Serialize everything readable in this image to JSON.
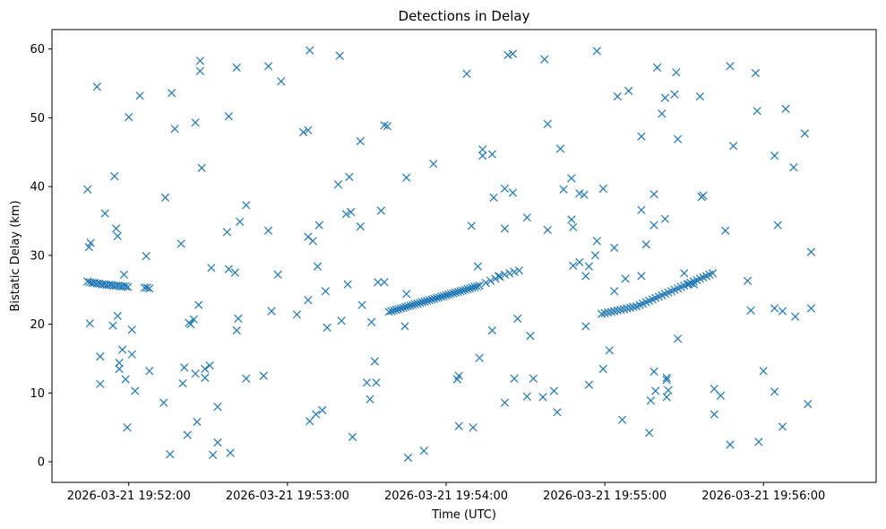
{
  "chart_data": {
    "type": "scatter",
    "title": "Detections in Delay",
    "xlabel": "Time (UTC)",
    "ylabel": "Bistatic Delay (km)",
    "marker": "x",
    "color": "#1f77b4",
    "grid": false,
    "legend": "none",
    "x_unit": "minutes",
    "xlim": [
      -0.484,
      4.71
    ],
    "ylim": [
      -2.99,
      62.82
    ],
    "x_ticks": [
      {
        "value": 0,
        "label": "2026-03-21 19:52:00"
      },
      {
        "value": 1,
        "label": "2026-03-21 19:53:00"
      },
      {
        "value": 2,
        "label": "2026-03-21 19:54:00"
      },
      {
        "value": 3,
        "label": "2026-03-21 19:55:00"
      },
      {
        "value": 4,
        "label": "2026-03-21 19:56:00"
      }
    ],
    "y_ticks": [
      0,
      10,
      20,
      30,
      40,
      50,
      60
    ],
    "points": [
      [
        -0.26,
        26.2
      ],
      [
        -0.245,
        26.1
      ],
      [
        -0.23,
        26.0
      ],
      [
        -0.215,
        26.0
      ],
      [
        -0.2,
        25.9
      ],
      [
        -0.185,
        25.9
      ],
      [
        -0.17,
        25.8
      ],
      [
        -0.155,
        25.8
      ],
      [
        -0.14,
        25.7
      ],
      [
        -0.125,
        25.7
      ],
      [
        -0.11,
        25.7
      ],
      [
        -0.095,
        25.6
      ],
      [
        -0.08,
        25.6
      ],
      [
        -0.065,
        25.6
      ],
      [
        -0.05,
        25.5
      ],
      [
        -0.035,
        25.5
      ],
      [
        -0.02,
        25.5
      ],
      [
        -0.005,
        25.4
      ],
      [
        0.1,
        25.3
      ],
      [
        0.115,
        25.3
      ],
      [
        0.13,
        25.2
      ],
      [
        1.64,
        21.8
      ],
      [
        1.655,
        21.9
      ],
      [
        1.67,
        22.0
      ],
      [
        1.685,
        22.1
      ],
      [
        1.7,
        22.2
      ],
      [
        1.715,
        22.3
      ],
      [
        1.73,
        22.4
      ],
      [
        1.745,
        22.5
      ],
      [
        1.76,
        22.6
      ],
      [
        1.775,
        22.7
      ],
      [
        1.79,
        22.8
      ],
      [
        1.805,
        22.9
      ],
      [
        1.82,
        23.0
      ],
      [
        1.835,
        23.1
      ],
      [
        1.85,
        23.2
      ],
      [
        1.865,
        23.3
      ],
      [
        1.88,
        23.4
      ],
      [
        1.895,
        23.5
      ],
      [
        1.91,
        23.6
      ],
      [
        1.925,
        23.7
      ],
      [
        1.94,
        23.8
      ],
      [
        1.955,
        23.9
      ],
      [
        1.97,
        24.0
      ],
      [
        1.985,
        24.1
      ],
      [
        2.0,
        24.2
      ],
      [
        2.015,
        24.3
      ],
      [
        2.03,
        24.4
      ],
      [
        2.045,
        24.5
      ],
      [
        2.06,
        24.6
      ],
      [
        2.075,
        24.7
      ],
      [
        2.09,
        24.8
      ],
      [
        2.105,
        24.9
      ],
      [
        2.12,
        25.0
      ],
      [
        2.135,
        25.1
      ],
      [
        2.15,
        25.2
      ],
      [
        2.165,
        25.3
      ],
      [
        2.18,
        25.4
      ],
      [
        2.195,
        25.5
      ],
      [
        2.21,
        25.6
      ],
      [
        2.25,
        26.0
      ],
      [
        2.28,
        26.3
      ],
      [
        2.31,
        26.6
      ],
      [
        2.34,
        26.9
      ],
      [
        2.37,
        27.2
      ],
      [
        2.4,
        27.4
      ],
      [
        2.43,
        27.6
      ],
      [
        2.46,
        27.8
      ],
      [
        2.98,
        21.5
      ],
      [
        3.0,
        21.6
      ],
      [
        3.02,
        21.7
      ],
      [
        3.04,
        21.8
      ],
      [
        3.06,
        21.9
      ],
      [
        3.08,
        22.0
      ],
      [
        3.1,
        22.1
      ],
      [
        3.12,
        22.2
      ],
      [
        3.14,
        22.3
      ],
      [
        3.16,
        22.4
      ],
      [
        3.18,
        22.5
      ],
      [
        3.2,
        22.6
      ],
      [
        3.22,
        22.8
      ],
      [
        3.24,
        23.0
      ],
      [
        3.26,
        23.2
      ],
      [
        3.28,
        23.4
      ],
      [
        3.3,
        23.6
      ],
      [
        3.32,
        23.8
      ],
      [
        3.34,
        24.0
      ],
      [
        3.36,
        24.2
      ],
      [
        3.38,
        24.4
      ],
      [
        3.4,
        24.6
      ],
      [
        3.42,
        24.8
      ],
      [
        3.44,
        25.0
      ],
      [
        3.46,
        25.2
      ],
      [
        3.48,
        25.4
      ],
      [
        3.5,
        25.6
      ],
      [
        3.52,
        25.8
      ],
      [
        3.54,
        26.0
      ],
      [
        3.56,
        26.2
      ],
      [
        3.58,
        26.4
      ],
      [
        3.6,
        26.6
      ],
      [
        3.62,
        26.8
      ],
      [
        3.64,
        27.0
      ],
      [
        3.66,
        27.2
      ],
      [
        3.68,
        27.4
      ],
      [
        -0.26,
        39.6
      ],
      [
        -0.25,
        31.2
      ],
      [
        -0.24,
        31.8
      ],
      [
        -0.245,
        20.1
      ],
      [
        -0.2,
        54.5
      ],
      [
        -0.18,
        15.3
      ],
      [
        -0.18,
        11.3
      ],
      [
        -0.15,
        36.1
      ],
      [
        -0.1,
        19.8
      ],
      [
        -0.09,
        41.5
      ],
      [
        -0.08,
        33.9
      ],
      [
        -0.07,
        32.8
      ],
      [
        -0.07,
        21.2
      ],
      [
        -0.06,
        14.4
      ],
      [
        -0.06,
        13.5
      ],
      [
        -0.04,
        16.3
      ],
      [
        -0.03,
        27.2
      ],
      [
        -0.02,
        12.0
      ],
      [
        -0.01,
        5.0
      ],
      [
        0.0,
        50.1
      ],
      [
        0.02,
        15.6
      ],
      [
        0.02,
        19.2
      ],
      [
        0.04,
        10.3
      ],
      [
        0.07,
        53.2
      ],
      [
        0.11,
        29.9
      ],
      [
        0.13,
        13.2
      ],
      [
        0.22,
        8.6
      ],
      [
        0.23,
        38.4
      ],
      [
        0.26,
        1.1
      ],
      [
        0.27,
        53.6
      ],
      [
        0.29,
        48.4
      ],
      [
        0.33,
        31.7
      ],
      [
        0.34,
        11.4
      ],
      [
        0.35,
        13.7
      ],
      [
        0.37,
        3.9
      ],
      [
        0.38,
        20.2
      ],
      [
        0.39,
        20.0
      ],
      [
        0.41,
        20.7
      ],
      [
        0.42,
        49.3
      ],
      [
        0.42,
        12.8
      ],
      [
        0.43,
        5.8
      ],
      [
        0.44,
        22.8
      ],
      [
        0.45,
        58.3
      ],
      [
        0.45,
        56.8
      ],
      [
        0.46,
        42.7
      ],
      [
        0.48,
        13.5
      ],
      [
        0.48,
        12.2
      ],
      [
        0.51,
        14.0
      ],
      [
        0.52,
        28.2
      ],
      [
        0.53,
        1.0
      ],
      [
        0.56,
        8.0
      ],
      [
        0.56,
        2.8
      ],
      [
        0.62,
        33.4
      ],
      [
        0.63,
        28.0
      ],
      [
        0.63,
        50.2
      ],
      [
        0.64,
        1.3
      ],
      [
        0.67,
        27.5
      ],
      [
        0.68,
        57.3
      ],
      [
        0.68,
        19.1
      ],
      [
        0.69,
        20.8
      ],
      [
        0.7,
        34.9
      ],
      [
        0.74,
        37.3
      ],
      [
        0.74,
        12.1
      ],
      [
        0.85,
        12.5
      ],
      [
        0.88,
        57.5
      ],
      [
        0.88,
        33.6
      ],
      [
        0.9,
        21.9
      ],
      [
        0.94,
        27.2
      ],
      [
        0.96,
        55.3
      ],
      [
        1.06,
        21.4
      ],
      [
        1.1,
        47.9
      ],
      [
        1.13,
        48.2
      ],
      [
        1.13,
        23.5
      ],
      [
        1.13,
        32.7
      ],
      [
        1.14,
        59.8
      ],
      [
        1.14,
        5.9
      ],
      [
        1.16,
        32.1
      ],
      [
        1.18,
        6.9
      ],
      [
        1.19,
        28.4
      ],
      [
        1.2,
        34.4
      ],
      [
        1.22,
        7.5
      ],
      [
        1.24,
        24.8
      ],
      [
        1.25,
        19.5
      ],
      [
        1.32,
        40.3
      ],
      [
        1.33,
        59.0
      ],
      [
        1.34,
        20.5
      ],
      [
        1.37,
        36.0
      ],
      [
        1.38,
        25.8
      ],
      [
        1.39,
        41.4
      ],
      [
        1.4,
        36.3
      ],
      [
        1.41,
        3.6
      ],
      [
        1.46,
        46.6
      ],
      [
        1.46,
        34.2
      ],
      [
        1.47,
        22.8
      ],
      [
        1.5,
        11.5
      ],
      [
        1.52,
        9.1
      ],
      [
        1.53,
        20.3
      ],
      [
        1.55,
        14.6
      ],
      [
        1.56,
        11.5
      ],
      [
        1.57,
        26.1
      ],
      [
        1.59,
        36.5
      ],
      [
        1.61,
        26.1
      ],
      [
        1.61,
        48.9
      ],
      [
        1.63,
        48.8
      ],
      [
        1.74,
        19.7
      ],
      [
        1.75,
        41.3
      ],
      [
        1.75,
        24.4
      ],
      [
        1.76,
        0.6
      ],
      [
        1.86,
        1.6
      ],
      [
        1.92,
        43.3
      ],
      [
        2.07,
        12.0
      ],
      [
        2.08,
        12.5
      ],
      [
        2.08,
        5.2
      ],
      [
        2.13,
        56.4
      ],
      [
        2.16,
        34.3
      ],
      [
        2.17,
        5.0
      ],
      [
        2.2,
        28.4
      ],
      [
        2.21,
        15.1
      ],
      [
        2.23,
        45.4
      ],
      [
        2.23,
        44.5
      ],
      [
        2.29,
        44.7
      ],
      [
        2.29,
        19.1
      ],
      [
        2.3,
        38.4
      ],
      [
        2.33,
        27.0
      ],
      [
        2.37,
        39.7
      ],
      [
        2.37,
        33.9
      ],
      [
        2.37,
        8.6
      ],
      [
        2.39,
        59.1
      ],
      [
        2.42,
        59.3
      ],
      [
        2.42,
        39.1
      ],
      [
        2.43,
        12.1
      ],
      [
        2.45,
        20.8
      ],
      [
        2.51,
        35.5
      ],
      [
        2.51,
        9.5
      ],
      [
        2.53,
        18.3
      ],
      [
        2.55,
        12.1
      ],
      [
        2.61,
        9.4
      ],
      [
        2.62,
        58.5
      ],
      [
        2.64,
        49.1
      ],
      [
        2.64,
        33.7
      ],
      [
        2.68,
        10.3
      ],
      [
        2.7,
        7.2
      ],
      [
        2.72,
        45.5
      ],
      [
        2.74,
        39.6
      ],
      [
        2.79,
        41.2
      ],
      [
        2.79,
        35.2
      ],
      [
        2.8,
        34.1
      ],
      [
        2.8,
        28.5
      ],
      [
        2.84,
        39.0
      ],
      [
        2.84,
        29.0
      ],
      [
        2.87,
        38.8
      ],
      [
        2.88,
        19.7
      ],
      [
        2.88,
        27.0
      ],
      [
        2.9,
        28.4
      ],
      [
        2.9,
        11.2
      ],
      [
        2.94,
        30.0
      ],
      [
        2.95,
        59.7
      ],
      [
        2.95,
        32.1
      ],
      [
        2.99,
        13.5
      ],
      [
        2.99,
        39.7
      ],
      [
        3.03,
        16.2
      ],
      [
        3.06,
        24.8
      ],
      [
        3.06,
        31.1
      ],
      [
        3.08,
        53.1
      ],
      [
        3.11,
        6.1
      ],
      [
        3.13,
        26.6
      ],
      [
        3.15,
        53.9
      ],
      [
        3.23,
        47.3
      ],
      [
        3.23,
        36.6
      ],
      [
        3.23,
        27.0
      ],
      [
        3.26,
        31.6
      ],
      [
        3.28,
        4.2
      ],
      [
        3.29,
        8.9
      ],
      [
        3.31,
        38.9
      ],
      [
        3.31,
        34.4
      ],
      [
        3.31,
        13.1
      ],
      [
        3.32,
        10.3
      ],
      [
        3.33,
        57.3
      ],
      [
        3.36,
        50.6
      ],
      [
        3.38,
        52.9
      ],
      [
        3.38,
        35.3
      ],
      [
        3.39,
        12.2
      ],
      [
        3.39,
        11.9
      ],
      [
        3.39,
        9.4
      ],
      [
        3.4,
        10.4
      ],
      [
        3.44,
        53.4
      ],
      [
        3.45,
        56.6
      ],
      [
        3.46,
        46.9
      ],
      [
        3.46,
        17.9
      ],
      [
        3.5,
        27.4
      ],
      [
        3.53,
        25.8
      ],
      [
        3.56,
        25.8
      ],
      [
        3.6,
        53.1
      ],
      [
        3.61,
        38.5
      ],
      [
        3.62,
        38.7
      ],
      [
        3.69,
        6.9
      ],
      [
        3.69,
        10.6
      ],
      [
        3.73,
        9.6
      ],
      [
        3.76,
        33.6
      ],
      [
        3.79,
        57.5
      ],
      [
        3.79,
        2.5
      ],
      [
        3.81,
        45.9
      ],
      [
        3.9,
        26.3
      ],
      [
        3.92,
        22.0
      ],
      [
        3.95,
        56.5
      ],
      [
        3.96,
        51.0
      ],
      [
        3.97,
        2.9
      ],
      [
        4.0,
        13.2
      ],
      [
        4.07,
        44.5
      ],
      [
        4.07,
        22.3
      ],
      [
        4.07,
        10.2
      ],
      [
        4.09,
        34.4
      ],
      [
        4.12,
        5.1
      ],
      [
        4.12,
        21.9
      ],
      [
        4.14,
        51.3
      ],
      [
        4.19,
        42.8
      ],
      [
        4.2,
        21.1
      ],
      [
        4.26,
        47.7
      ],
      [
        4.28,
        8.4
      ],
      [
        4.3,
        22.3
      ],
      [
        4.3,
        30.5
      ]
    ]
  }
}
